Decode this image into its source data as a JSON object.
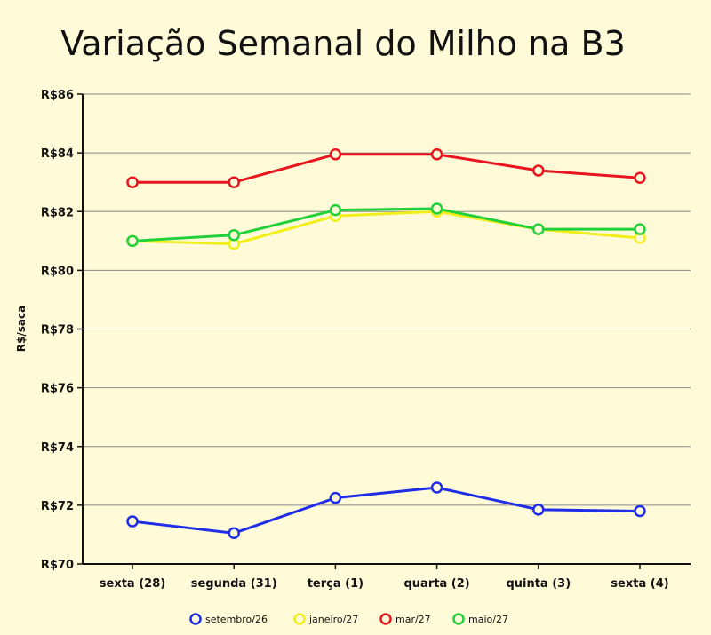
{
  "chart_data": {
    "type": "line",
    "title": "Variação Semanal do Milho na B3",
    "xlabel": "",
    "ylabel": "R$/saca",
    "categories": [
      "sexta (28)",
      "segunda (31)",
      "terça (1)",
      "quarta (2)",
      "quinta (3)",
      "sexta (4)"
    ],
    "ylim": [
      70,
      86
    ],
    "yticks": [
      70,
      72,
      74,
      76,
      78,
      80,
      82,
      84,
      86
    ],
    "ytick_labels": [
      "R$70",
      "R$72",
      "R$74",
      "R$76",
      "R$78",
      "R$80",
      "R$82",
      "R$84",
      "R$86"
    ],
    "grid": true,
    "legend_position": "bottom",
    "series": [
      {
        "name": "setembro/26",
        "color": "#1f2ee6",
        "values": [
          71.45,
          71.05,
          72.25,
          72.6,
          71.85,
          71.8
        ]
      },
      {
        "name": "janeiro/27",
        "color": "#f2ee1a",
        "values": [
          81.0,
          80.9,
          81.85,
          82.0,
          81.4,
          81.1
        ]
      },
      {
        "name": "mar/27",
        "color": "#e8141e",
        "values": [
          83.0,
          83.0,
          83.95,
          83.95,
          83.4,
          83.15
        ]
      },
      {
        "name": "maio/27",
        "color": "#22d13a",
        "values": [
          81.0,
          81.2,
          82.05,
          82.1,
          81.4,
          81.4
        ]
      }
    ]
  }
}
